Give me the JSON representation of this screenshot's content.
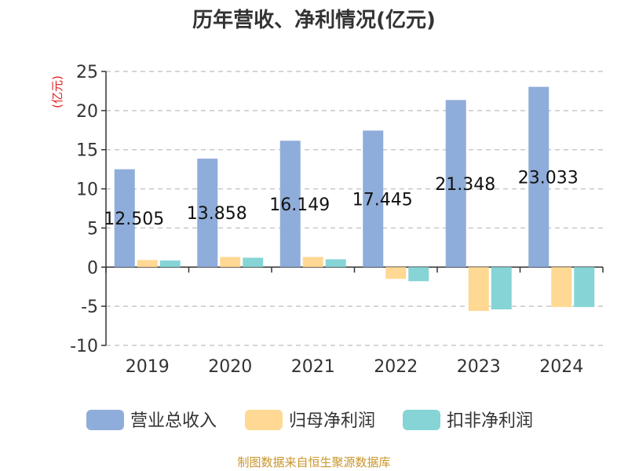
{
  "chart_data": {
    "type": "bar",
    "title": "历年营收、净利情况(亿元)",
    "ylabel": "(亿元)",
    "xlabel": "",
    "categories": [
      "2019",
      "2020",
      "2021",
      "2022",
      "2023",
      "2024"
    ],
    "series": [
      {
        "name": "营业总收入",
        "color": "#8fadda",
        "values": [
          12.505,
          13.858,
          16.149,
          17.445,
          21.348,
          23.033
        ]
      },
      {
        "name": "归母净利润",
        "color": "#ffd894",
        "values": [
          0.9,
          1.3,
          1.3,
          -1.5,
          -5.6,
          -5.1
        ]
      },
      {
        "name": "扣非净利润",
        "color": "#86d4d6",
        "values": [
          0.85,
          1.2,
          1.0,
          -1.8,
          -5.4,
          -5.1
        ]
      }
    ],
    "data_labels": [
      "12.505",
      "13.858",
      "16.149",
      "17.445",
      "21.348",
      "23.033"
    ],
    "ylim": [
      -10,
      25
    ],
    "yticks": [
      25,
      20,
      15,
      10,
      5,
      0,
      -5,
      -10
    ],
    "grid": true,
    "legend_position": "bottom"
  },
  "footer": "制图数据来自恒生聚源数据库"
}
